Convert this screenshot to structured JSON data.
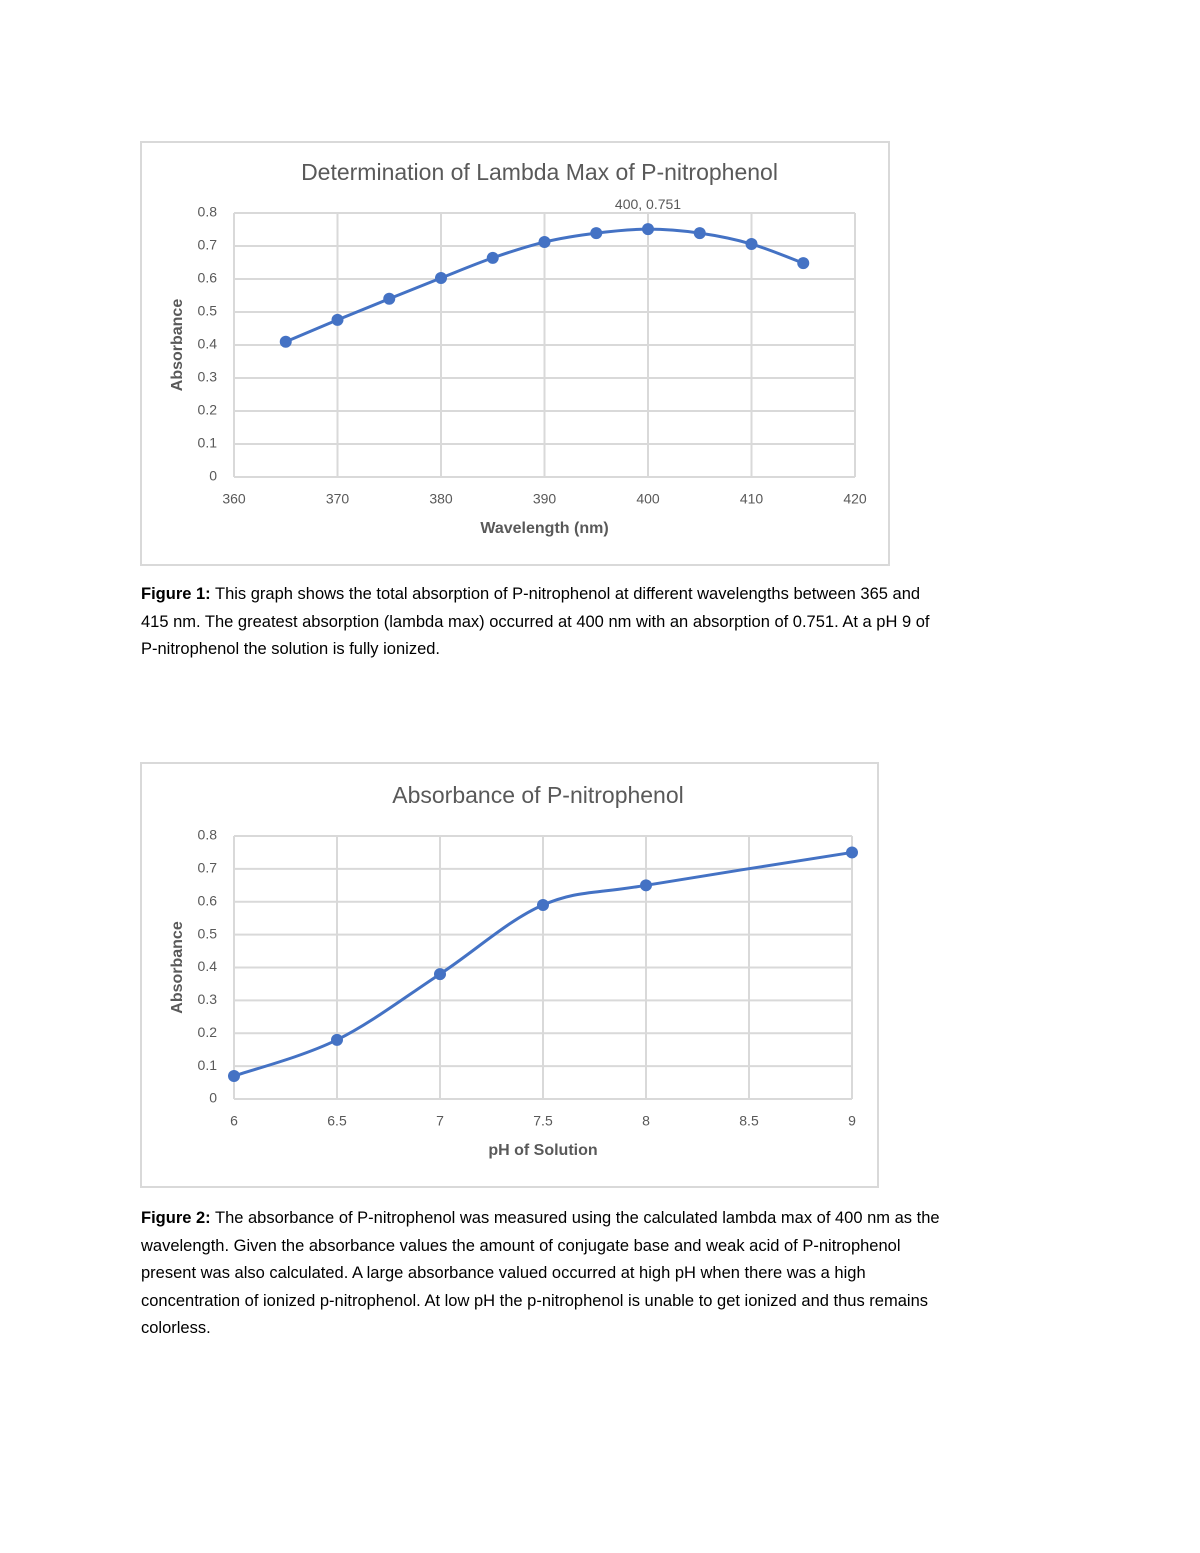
{
  "chart_data": [
    {
      "type": "line",
      "smooth": true,
      "title": "Determination of Lambda Max of P-nitrophenol",
      "x_label": "Wavelength (nm)",
      "y_label": "Absorbance",
      "x": [
        365,
        370,
        375,
        380,
        385,
        390,
        395,
        400,
        405,
        410,
        415
      ],
      "values": [
        0.41,
        0.476,
        0.54,
        0.603,
        0.664,
        0.712,
        0.739,
        0.751,
        0.739,
        0.706,
        0.648
      ],
      "value_labels": [
        null,
        null,
        null,
        null,
        null,
        null,
        null,
        "400, 0.751",
        null,
        null,
        null
      ],
      "color": "#4472c4",
      "xlim": [
        360,
        420
      ],
      "xticks": [
        360,
        370,
        380,
        390,
        400,
        410,
        420
      ],
      "ylim": [
        0,
        0.8
      ],
      "yticks": [
        0,
        0.1,
        0.2,
        0.3,
        0.4,
        0.5,
        0.6,
        0.7,
        0.8
      ],
      "grid": true
    },
    {
      "type": "line",
      "smooth": true,
      "title": "Absorbance of P-nitrophenol",
      "x_label": "pH of Solution",
      "y_label": "Absorbance",
      "x": [
        6,
        6.5,
        7,
        7.5,
        8,
        9
      ],
      "values": [
        0.07,
        0.18,
        0.38,
        0.59,
        0.65,
        0.75
      ],
      "color": "#4472c4",
      "xlim": [
        6,
        9
      ],
      "xticks": [
        6,
        6.5,
        7,
        7.5,
        8,
        8.5,
        9
      ],
      "ylim": [
        0,
        0.8
      ],
      "yticks": [
        0,
        0.1,
        0.2,
        0.3,
        0.4,
        0.5,
        0.6,
        0.7,
        0.8
      ],
      "grid": true
    }
  ],
  "captions": [
    {
      "label": "Figure 1:",
      "text": "This graph shows the total absorption of P-nitrophenol at different wavelengths between 365 and 415 nm. The greatest absorption (lambda max) occurred at 400 nm with an absorption of 0.751. At a pH 9 of P-nitrophenol the solution is fully ionized."
    },
    {
      "label": "Figure 2:",
      "text": "The absorbance of P-nitrophenol was measured using the calculated lambda max of 400 nm as the wavelength. Given the absorbance values the amount of conjugate base and weak acid of P-nitrophenol present was also calculated. A large absorbance valued occurred at high pH when there was a high concentration of ionized p-nitrophenol. At low pH the p-nitrophenol is unable to get ionized and thus remains colorless."
    }
  ]
}
